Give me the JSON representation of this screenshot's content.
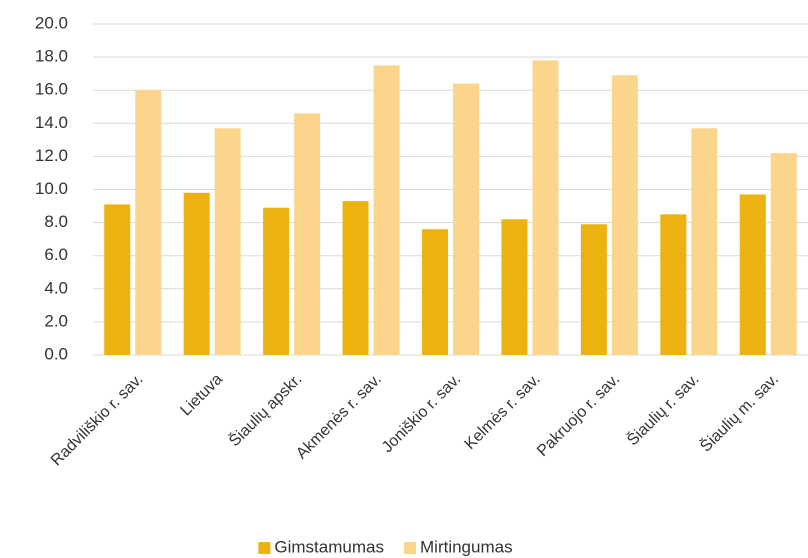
{
  "chart_data": {
    "type": "bar",
    "categories": [
      "Radviliškio r. sav.",
      "Lietuva",
      "Šiaulių apskr.",
      "Akmenės r. sav.",
      "Joniškio r. sav.",
      "Kelmės r. sav.",
      "Pakruojo r. sav.",
      "Šiaulių r. sav.",
      "Šiaulių m. sav."
    ],
    "series": [
      {
        "name": "Gimstamumas",
        "color": "#ebb210",
        "values": [
          9.1,
          9.8,
          8.9,
          9.3,
          7.6,
          8.2,
          7.9,
          8.5,
          9.7
        ]
      },
      {
        "name": "Mirtingumas",
        "color": "#fcd58c",
        "values": [
          16.0,
          13.7,
          14.6,
          17.5,
          16.4,
          17.8,
          16.9,
          13.7,
          12.2
        ]
      }
    ],
    "ylim": [
      0,
      20
    ],
    "yticks": [
      {
        "value": 0,
        "label": "0.0"
      },
      {
        "value": 2,
        "label": "2.0"
      },
      {
        "value": 4,
        "label": "4.0"
      },
      {
        "value": 6,
        "label": "6.0"
      },
      {
        "value": 8,
        "label": "8.0"
      },
      {
        "value": 10,
        "label": "10.0"
      },
      {
        "value": 12,
        "label": "12.0"
      },
      {
        "value": 14,
        "label": "14.0"
      },
      {
        "value": 16,
        "label": "16.0"
      },
      {
        "value": 18,
        "label": "18.0"
      },
      {
        "value": 20,
        "label": "20.0"
      }
    ],
    "grid": true,
    "legend": "bottom"
  }
}
